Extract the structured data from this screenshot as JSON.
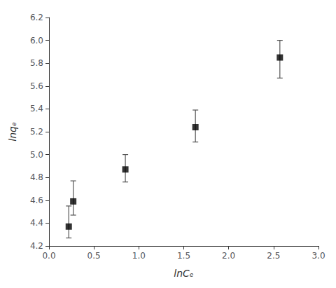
{
  "chart_data": {
    "type": "scatter",
    "x": [
      0.22,
      0.27,
      0.85,
      1.63,
      2.57
    ],
    "values": [
      4.37,
      4.59,
      4.87,
      5.24,
      5.85
    ],
    "error": {
      "lower": [
        0.1,
        0.12,
        0.11,
        0.13,
        0.18
      ],
      "upper": [
        0.18,
        0.18,
        0.13,
        0.15,
        0.15
      ],
      "color": "#555555"
    },
    "xlabel": "lnCₑ",
    "ylabel": "lnqₑ",
    "xlim": [
      0.0,
      3.0
    ],
    "ylim": [
      4.2,
      6.2
    ],
    "xticks": [
      {
        "value": 0,
        "label": "0.0"
      },
      0.5,
      {
        "value": 1,
        "label": "1.0"
      },
      1.5,
      {
        "value": 2,
        "label": "2.0"
      },
      2.5,
      {
        "value": 3,
        "label": "3.0"
      }
    ],
    "yticks": [
      4.2,
      4.4,
      4.6,
      4.8,
      {
        "value": 5,
        "label": "5.0"
      },
      5.2,
      5.4,
      5.6,
      5.8,
      {
        "value": 6,
        "label": "6.0"
      },
      6.2
    ],
    "marker": "square",
    "color": "black",
    "grid": false
  }
}
